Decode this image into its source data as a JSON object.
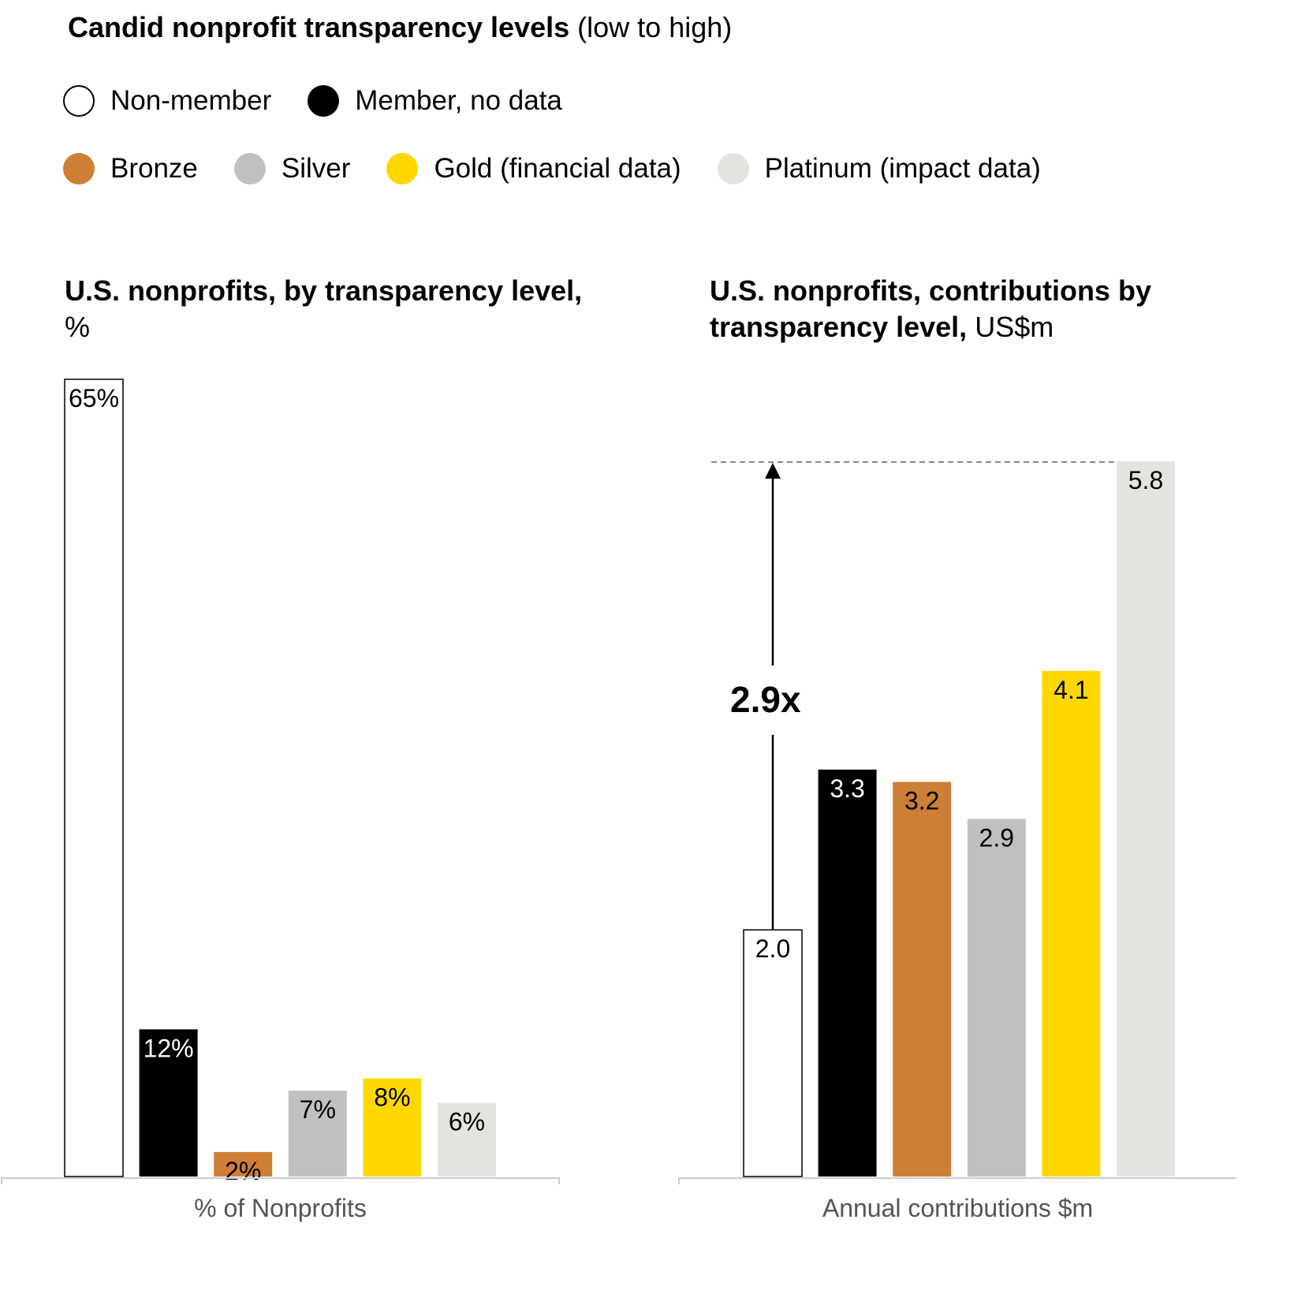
{
  "title": {
    "bold": "Candid nonprofit transparency levels",
    "normal": "(low to high)"
  },
  "legend": [
    {
      "label": "Non-member",
      "color": "#ffffff",
      "border": "#000000"
    },
    {
      "label": "Member, no data",
      "color": "#000000"
    },
    {
      "label": "Bronze",
      "color": "#cd7f35"
    },
    {
      "label": "Silver",
      "color": "#c0c0c0"
    },
    {
      "label": "Gold (financial data)",
      "color": "#ffd700"
    },
    {
      "label": "Platinum (impact data)",
      "color": "#e4e3e0"
    }
  ],
  "left_panel": {
    "title_bold": "U.S. nonprofits, by transparency level,",
    "title_unit": "%",
    "xlabel": "% of Nonprofits"
  },
  "right_panel": {
    "title_bold": "U.S. nonprofits, contributions by transparency level,",
    "title_unit": "US$m",
    "xlabel": "Annual contributions $m",
    "annotation": "2.9x"
  },
  "chart_data": [
    {
      "type": "bar",
      "categories": [
        "Non-member",
        "Member, no data",
        "Bronze",
        "Silver",
        "Gold (financial data)",
        "Platinum (impact data)"
      ],
      "values": [
        65,
        12,
        2,
        7,
        8,
        6
      ],
      "data_labels": [
        "65%",
        "12%",
        "2%",
        "7%",
        "8%",
        "6%"
      ],
      "colors": [
        "#ffffff",
        "#000000",
        "#cd7f35",
        "#c0c0c0",
        "#ffd700",
        "#e4e3e0"
      ],
      "label_colors": [
        "#000000",
        "#ffffff",
        "#000000",
        "#000000",
        "#000000",
        "#000000"
      ],
      "title": "U.S. nonprofits, by transparency level, %",
      "xlabel": "% of Nonprofits",
      "ylim": [
        0,
        65
      ]
    },
    {
      "type": "bar",
      "categories": [
        "Non-member",
        "Member, no data",
        "Bronze",
        "Silver",
        "Gold (financial data)",
        "Platinum (impact data)"
      ],
      "values": [
        2.0,
        3.3,
        3.2,
        2.9,
        4.1,
        5.8
      ],
      "data_labels": [
        "2.0",
        "3.3",
        "3.2",
        "2.9",
        "4.1",
        "5.8"
      ],
      "colors": [
        "#ffffff",
        "#000000",
        "#cd7f35",
        "#c0c0c0",
        "#ffd700",
        "#e4e3e0"
      ],
      "label_colors": [
        "#000000",
        "#ffffff",
        "#000000",
        "#000000",
        "#000000",
        "#000000"
      ],
      "title": "U.S. nonprofits, contributions by transparency level, US$m",
      "xlabel": "Annual contributions $m",
      "ylim": [
        0,
        5.8
      ],
      "annotation": "2.9x"
    }
  ]
}
